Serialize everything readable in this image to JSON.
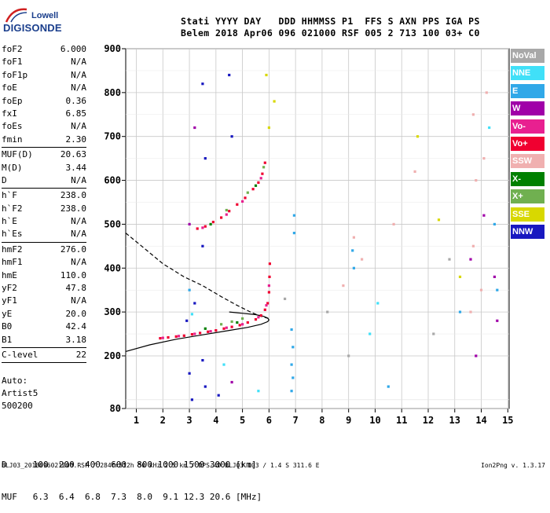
{
  "logo": {
    "line1": "Lowell",
    "line2": "DIGISONDE"
  },
  "header": {
    "line1": "Stati YYYY DAY   DDD HHMMSS P1  FFS S AXN PPS IGA PS",
    "line2": "Belem 2018 Apr06 096 021000 RSF 005 2 713 100 03+ C0"
  },
  "params": [
    {
      "k": "foF2",
      "v": "6.000"
    },
    {
      "k": "foF1",
      "v": "N/A"
    },
    {
      "k": "foF1p",
      "v": "N/A"
    },
    {
      "k": "foE",
      "v": "N/A"
    },
    {
      "k": "foEp",
      "v": "0.36"
    },
    {
      "k": "fxI",
      "v": "6.85"
    },
    {
      "k": "foEs",
      "v": "N/A"
    },
    {
      "k": "fmin",
      "v": "2.30"
    },
    {
      "sep": true
    },
    {
      "k": "MUF(D)",
      "v": "20.63"
    },
    {
      "k": "M(D)",
      "v": "3.44"
    },
    {
      "k": "D",
      "v": "N/A"
    },
    {
      "sep": true
    },
    {
      "k": "h`F",
      "v": "238.0"
    },
    {
      "k": "h`F2",
      "v": "238.0"
    },
    {
      "k": "h`E",
      "v": "N/A"
    },
    {
      "k": "h`Es",
      "v": "N/A"
    },
    {
      "sep": true
    },
    {
      "k": "hmF2",
      "v": "276.0"
    },
    {
      "k": "hmF1",
      "v": "N/A"
    },
    {
      "k": "hmE",
      "v": "110.0"
    },
    {
      "k": "yF2",
      "v": "47.8"
    },
    {
      "k": "yF1",
      "v": "N/A"
    },
    {
      "k": "yE",
      "v": "20.0"
    },
    {
      "k": "B0",
      "v": "42.4"
    },
    {
      "k": "B1",
      "v": "3.18"
    },
    {
      "sep": true
    },
    {
      "k": "C-level",
      "v": "22"
    },
    {
      "sep": true
    }
  ],
  "auto": {
    "line1": "Auto:",
    "line2": "Artist5",
    "line3": "500200"
  },
  "dmuf": {
    "line1": "D     100  200  400  600  800 1000 1500 3000 [km]",
    "line2": "MUF   6.3  6.4  6.8  7.3  8.0  9.1 12.3 20.6 [MHz]"
  },
  "footer": "BLJ03_2018096021000.RSF / 284fx512h 50 kHz 2.5 km / DPS-4D BLJ03 103 / 1.4 S 311.6 E",
  "version": "Ion2Png v. 1.3.17",
  "legend": [
    {
      "label": "NoVal",
      "color": "#a8a8a8"
    },
    {
      "label": "NNE",
      "color": "#40e0f8"
    },
    {
      "label": "E",
      "color": "#30a8e8"
    },
    {
      "label": "W",
      "color": "#a000a8"
    },
    {
      "label": "Vo-",
      "color": "#e82090"
    },
    {
      "label": "Vo+",
      "color": "#f00030"
    },
    {
      "label": "SSW",
      "color": "#f0b0b0"
    },
    {
      "label": "X-",
      "color": "#008000"
    },
    {
      "label": "X+",
      "color": "#70b050"
    },
    {
      "label": "SSE",
      "color": "#d8d800"
    },
    {
      "label": "NNW",
      "color": "#1818c0"
    }
  ],
  "chart_data": {
    "type": "scatter",
    "xlim": [
      0.6,
      15.05
    ],
    "ylim": [
      80,
      900
    ],
    "xticks": [
      "1",
      "2",
      "3",
      "4",
      "5",
      "6",
      "7",
      "8",
      "9",
      "10",
      "11",
      "12",
      "13",
      "14",
      "15"
    ],
    "yticks": [
      "80",
      "200",
      "300",
      "400",
      "500",
      "600",
      "700",
      "800",
      "900"
    ],
    "grid": true,
    "series": [
      {
        "name": "Vo+",
        "color": "#f00030",
        "points": [
          [
            1.9,
            240
          ],
          [
            2.2,
            242
          ],
          [
            2.5,
            244
          ],
          [
            2.8,
            246
          ],
          [
            3.1,
            249
          ],
          [
            3.4,
            252
          ],
          [
            3.7,
            255
          ],
          [
            4.0,
            258
          ],
          [
            4.3,
            262
          ],
          [
            4.6,
            266
          ],
          [
            4.9,
            270
          ],
          [
            5.2,
            276
          ],
          [
            5.5,
            283
          ],
          [
            5.7,
            292
          ],
          [
            5.85,
            305
          ],
          [
            5.95,
            320
          ],
          [
            6.0,
            345
          ],
          [
            6.02,
            380
          ],
          [
            6.03,
            410
          ],
          [
            3.3,
            490
          ],
          [
            3.6,
            495
          ],
          [
            3.9,
            505
          ],
          [
            4.2,
            515
          ],
          [
            4.5,
            530
          ],
          [
            4.8,
            545
          ],
          [
            5.1,
            560
          ],
          [
            5.4,
            580
          ],
          [
            5.6,
            595
          ],
          [
            5.75,
            615
          ],
          [
            5.85,
            640
          ]
        ]
      },
      {
        "name": "Vo-",
        "color": "#e82090",
        "points": [
          [
            2.0,
            241
          ],
          [
            2.6,
            245
          ],
          [
            3.2,
            250
          ],
          [
            3.8,
            256
          ],
          [
            4.4,
            264
          ],
          [
            5.0,
            272
          ],
          [
            5.6,
            288
          ],
          [
            5.9,
            315
          ],
          [
            6.0,
            360
          ],
          [
            3.5,
            492
          ],
          [
            4.4,
            522
          ],
          [
            5.0,
            552
          ],
          [
            5.7,
            605
          ]
        ]
      },
      {
        "name": "X+",
        "color": "#70b050",
        "points": [
          [
            4.2,
            272
          ],
          [
            4.6,
            278
          ],
          [
            5.0,
            285
          ],
          [
            4.4,
            532
          ],
          [
            5.2,
            572
          ],
          [
            5.8,
            630
          ]
        ]
      },
      {
        "name": "X-",
        "color": "#008000",
        "points": [
          [
            3.6,
            262
          ],
          [
            4.8,
            276
          ],
          [
            3.8,
            500
          ],
          [
            5.5,
            588
          ]
        ]
      },
      {
        "name": "SSW",
        "color": "#f0b0b0",
        "points": [
          [
            13.6,
            300
          ],
          [
            13.7,
            450
          ],
          [
            13.8,
            600
          ],
          [
            13.7,
            750
          ],
          [
            14.0,
            350
          ],
          [
            14.1,
            650
          ],
          [
            14.2,
            800
          ],
          [
            9.5,
            420
          ],
          [
            10.7,
            500
          ],
          [
            8.8,
            360
          ],
          [
            9.2,
            470
          ],
          [
            11.5,
            620
          ]
        ]
      },
      {
        "name": "E",
        "color": "#30a8e8",
        "points": [
          [
            6.85,
            120
          ],
          [
            6.9,
            150
          ],
          [
            6.85,
            180
          ],
          [
            6.9,
            220
          ],
          [
            6.85,
            260
          ],
          [
            6.95,
            480
          ],
          [
            6.95,
            520
          ],
          [
            3.0,
            350
          ],
          [
            9.2,
            400
          ],
          [
            9.15,
            440
          ],
          [
            10.5,
            130
          ],
          [
            13.2,
            300
          ],
          [
            14.6,
            350
          ],
          [
            14.5,
            500
          ]
        ]
      },
      {
        "name": "NNW",
        "color": "#1818c0",
        "points": [
          [
            3.5,
            450
          ],
          [
            3.6,
            650
          ],
          [
            3.5,
            820
          ],
          [
            4.5,
            840
          ],
          [
            4.6,
            700
          ],
          [
            3.0,
            160
          ],
          [
            3.1,
            100
          ],
          [
            3.5,
            190
          ],
          [
            3.6,
            130
          ],
          [
            4.1,
            110
          ],
          [
            2.9,
            280
          ],
          [
            3.2,
            320
          ]
        ]
      },
      {
        "name": "W",
        "color": "#a000a8",
        "points": [
          [
            3.0,
            500
          ],
          [
            3.2,
            720
          ],
          [
            4.6,
            140
          ],
          [
            13.6,
            420
          ],
          [
            13.8,
            200
          ],
          [
            14.1,
            520
          ],
          [
            14.6,
            280
          ],
          [
            14.5,
            380
          ]
        ]
      },
      {
        "name": "SSE",
        "color": "#d8d800",
        "points": [
          [
            6.0,
            720
          ],
          [
            6.2,
            780
          ],
          [
            5.9,
            840
          ],
          [
            12.4,
            510
          ],
          [
            11.6,
            700
          ],
          [
            13.2,
            380
          ]
        ]
      },
      {
        "name": "NNE",
        "color": "#40e0f8",
        "points": [
          [
            3.1,
            295
          ],
          [
            4.3,
            180
          ],
          [
            5.6,
            120
          ],
          [
            9.8,
            250
          ],
          [
            10.1,
            320
          ],
          [
            14.3,
            720
          ]
        ]
      },
      {
        "name": "NoVal",
        "color": "#a8a8a8",
        "points": [
          [
            6.6,
            330
          ],
          [
            8.2,
            300
          ],
          [
            9.0,
            200
          ],
          [
            12.2,
            250
          ],
          [
            12.8,
            420
          ]
        ]
      }
    ],
    "curves": [
      {
        "style": "solid",
        "points": [
          [
            0.6,
            210
          ],
          [
            1.5,
            225
          ],
          [
            2.5,
            238
          ],
          [
            3.5,
            248
          ],
          [
            4.5,
            258
          ],
          [
            5.2,
            265
          ],
          [
            5.7,
            272
          ],
          [
            5.95,
            278
          ],
          [
            6.0,
            282
          ],
          [
            5.95,
            286
          ],
          [
            5.8,
            290
          ],
          [
            5.5,
            294
          ],
          [
            5.0,
            297
          ],
          [
            4.5,
            300
          ]
        ]
      },
      {
        "style": "dashed",
        "points": [
          [
            0.6,
            480
          ],
          [
            1.2,
            450
          ],
          [
            2.0,
            410
          ],
          [
            2.8,
            380
          ],
          [
            3.5,
            360
          ],
          [
            4.2,
            335
          ],
          [
            4.8,
            315
          ],
          [
            5.3,
            300
          ],
          [
            5.7,
            290
          ],
          [
            6.0,
            285
          ]
        ]
      }
    ]
  }
}
